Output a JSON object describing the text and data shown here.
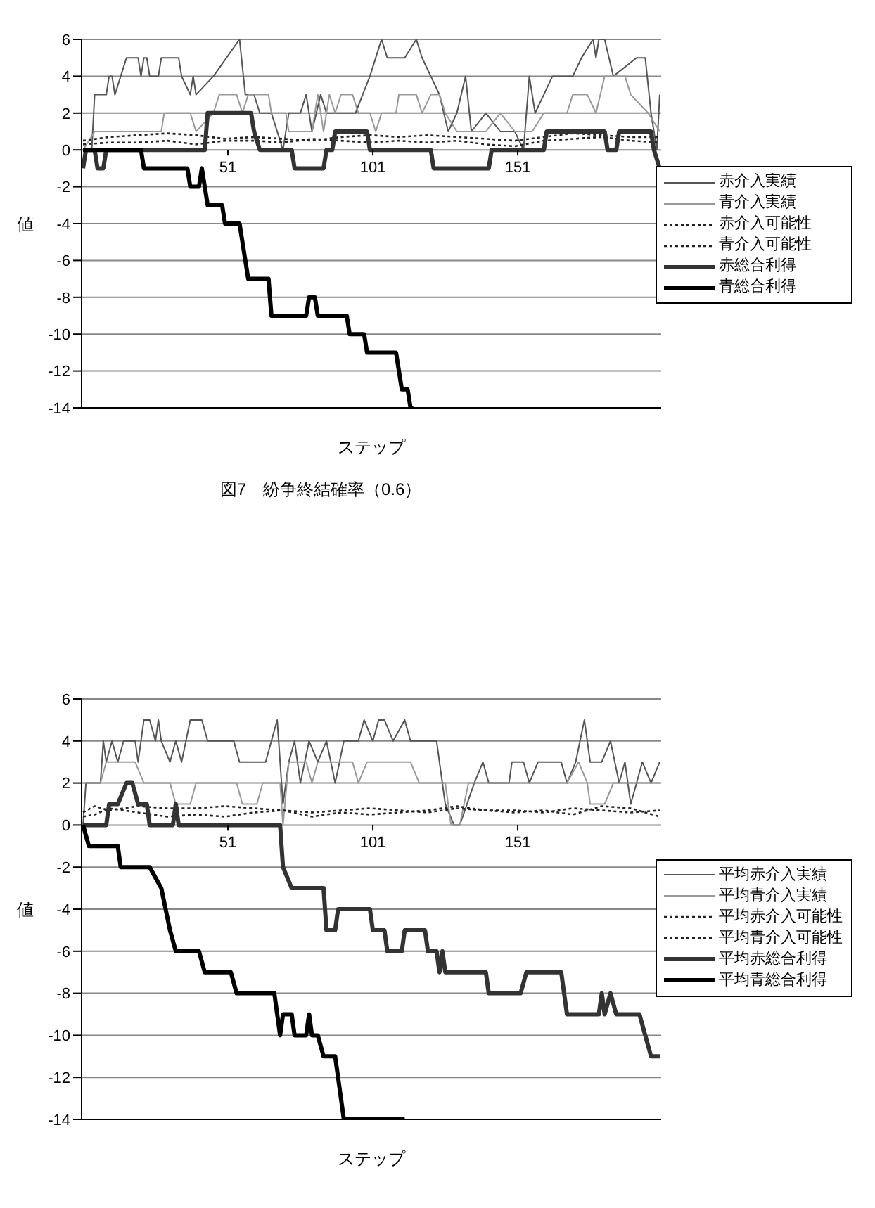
{
  "chart_data": [
    {
      "type": "line",
      "title": "図7　紛争終結確率（0.6）",
      "xlabel": "ステップ",
      "ylabel": "値",
      "xlim": [
        0.5,
        200.5
      ],
      "xticks": [
        51,
        101,
        151
      ],
      "ylim": [
        -14,
        6
      ],
      "yticks": [
        -14,
        -12,
        -10,
        -8,
        -6,
        -4,
        -2,
        0,
        2,
        4,
        6
      ],
      "grid": "y",
      "legend": "right",
      "series": [
        {
          "name": "赤介入実績",
          "color": "#555555",
          "line_style": "solid",
          "x": [
            1,
            4,
            5,
            9,
            10,
            11,
            12,
            14,
            16,
            20,
            21,
            22,
            23,
            24,
            27,
            28,
            34,
            35,
            38,
            39,
            40,
            46,
            55,
            57,
            60,
            62,
            66,
            70,
            72,
            76,
            78,
            80,
            83,
            85,
            90,
            95,
            100,
            104,
            106,
            110,
            112,
            116,
            118,
            121,
            124,
            127,
            130,
            133,
            135,
            140,
            145,
            150,
            153,
            155,
            157,
            160,
            163,
            170,
            173,
            177,
            178,
            179,
            181,
            184,
            192,
            195,
            197,
            199,
            200
          ],
          "values": [
            0,
            0,
            3,
            3,
            4,
            4,
            3,
            4,
            5,
            5,
            4,
            5,
            5,
            4,
            4,
            5,
            5,
            4,
            3,
            4,
            3,
            4,
            6,
            3,
            3,
            2,
            2,
            0,
            2,
            2,
            3,
            1,
            3,
            2,
            2,
            2,
            4,
            6,
            5,
            5,
            5,
            6,
            5,
            4,
            3,
            1,
            2,
            4,
            1,
            2,
            1,
            1,
            0,
            4,
            2,
            3,
            4,
            4,
            5,
            6,
            5,
            6,
            6,
            4,
            5,
            5,
            2,
            0,
            3
          ]
        },
        {
          "name": "青介入実績",
          "color": "#999999",
          "line_style": "solid",
          "x": [
            1,
            5,
            28,
            29,
            38,
            40,
            46,
            48,
            54,
            56,
            58,
            65,
            66,
            71,
            72,
            80,
            82,
            84,
            86,
            88,
            90,
            94,
            96,
            100,
            102,
            104,
            109,
            110,
            116,
            118,
            121,
            124,
            126,
            130,
            140,
            145,
            150,
            156,
            160,
            168,
            170,
            175,
            178,
            181,
            188,
            190,
            196,
            200
          ],
          "values": [
            0,
            1,
            1,
            2,
            2,
            1,
            2,
            3,
            3,
            2,
            3,
            3,
            2,
            2,
            1,
            1,
            3,
            1,
            3,
            2,
            3,
            3,
            2,
            2,
            1,
            2,
            2,
            3,
            3,
            2,
            3,
            3,
            2,
            1,
            1,
            2,
            1,
            1,
            2,
            2,
            3,
            3,
            2,
            4,
            4,
            3,
            2,
            1
          ]
        },
        {
          "name": "赤介入可能性",
          "color": "#222222",
          "line_style": "dotted",
          "x": [
            1,
            10,
            20,
            30,
            40,
            50,
            60,
            70,
            80,
            90,
            100,
            110,
            120,
            130,
            140,
            150,
            160,
            170,
            180,
            190,
            200
          ],
          "values": [
            0.5,
            0.7,
            0.8,
            0.9,
            0.8,
            0.6,
            0.7,
            0.6,
            0.5,
            0.7,
            0.8,
            0.7,
            0.8,
            0.7,
            0.6,
            0.5,
            0.7,
            0.9,
            0.8,
            0.7,
            0.7
          ]
        },
        {
          "name": "青介入可能性",
          "color": "#222222",
          "line_style": "dotted",
          "x": [
            1,
            10,
            20,
            30,
            40,
            50,
            60,
            70,
            80,
            90,
            100,
            110,
            120,
            130,
            140,
            150,
            160,
            170,
            180,
            190,
            200
          ],
          "values": [
            0.3,
            0.4,
            0.4,
            0.5,
            0.3,
            0.5,
            0.5,
            0.4,
            0.6,
            0.5,
            0.4,
            0.5,
            0.4,
            0.5,
            0.3,
            0.2,
            0.5,
            0.6,
            0.7,
            0.5,
            0.4
          ]
        },
        {
          "name": "赤総合利得",
          "color": "#333333",
          "line_style": "solid",
          "x": [
            1,
            2,
            5,
            6,
            8,
            9,
            43,
            44,
            59,
            60,
            62,
            73,
            74,
            84,
            85,
            87,
            88,
            99,
            100,
            121,
            122,
            141,
            142,
            160,
            161,
            181,
            182,
            185,
            186,
            197,
            198,
            200
          ],
          "values": [
            -1,
            0,
            0,
            -1,
            -1,
            0,
            0,
            2,
            2,
            1,
            0,
            0,
            -1,
            -1,
            0,
            0,
            1,
            1,
            0,
            0,
            -1,
            -1,
            0,
            0,
            1,
            1,
            0,
            0,
            1,
            1,
            0,
            -1
          ]
        },
        {
          "name": "青総合利得",
          "color": "#000000",
          "line_style": "solid",
          "x": [
            1,
            21,
            22,
            37,
            38,
            41,
            42,
            43,
            44,
            49,
            50,
            55,
            57,
            58,
            65,
            66,
            78,
            79,
            81,
            82,
            92,
            93,
            98,
            99,
            109,
            111,
            113,
            114,
            115
          ],
          "values": [
            0,
            0,
            -1,
            -1,
            -2,
            -2,
            -1,
            -2,
            -3,
            -3,
            -4,
            -4,
            -6,
            -7,
            -7,
            -9,
            -9,
            -8,
            -8,
            -9,
            -9,
            -10,
            -10,
            -11,
            -11,
            -13,
            -13,
            -14,
            -14
          ]
        }
      ]
    },
    {
      "type": "line",
      "xlabel": "ステップ",
      "ylabel": "値",
      "xlim": [
        0.5,
        200.5
      ],
      "xticks": [
        51,
        101,
        151
      ],
      "ylim": [
        -14,
        6
      ],
      "yticks": [
        -14,
        -12,
        -10,
        -8,
        -6,
        -4,
        -2,
        0,
        2,
        4,
        6
      ],
      "grid": "y",
      "legend": "right",
      "series": [
        {
          "name": "平均赤介入実績",
          "color": "#555555",
          "line_style": "solid",
          "x": [
            1,
            2,
            7,
            8,
            9,
            11,
            13,
            15,
            19,
            20,
            22,
            24,
            26,
            27,
            28,
            31,
            33,
            35,
            38,
            42,
            44,
            53,
            55,
            64,
            66,
            68,
            70,
            72,
            74,
            76,
            79,
            82,
            85,
            88,
            91,
            96,
            98,
            101,
            103,
            105,
            108,
            112,
            114,
            123,
            126,
            129,
            131,
            136,
            139,
            141,
            148,
            149,
            153,
            155,
            158,
            166,
            168,
            171,
            174,
            176,
            180,
            183,
            186,
            188,
            190,
            194,
            197,
            200
          ],
          "values": [
            0,
            2,
            2,
            4,
            3,
            4,
            3,
            4,
            4,
            3,
            5,
            5,
            4,
            5,
            4,
            3,
            4,
            3,
            5,
            5,
            4,
            4,
            3,
            3,
            4,
            5,
            1,
            3,
            4,
            2,
            4,
            3,
            4,
            2,
            4,
            4,
            5,
            4,
            5,
            5,
            4,
            5,
            4,
            4,
            1,
            0,
            0,
            2,
            3,
            2,
            2,
            3,
            3,
            2,
            3,
            3,
            2,
            3,
            5,
            3,
            3,
            4,
            2,
            3,
            1,
            3,
            2,
            3
          ]
        },
        {
          "name": "平均青介入実績",
          "color": "#999999",
          "line_style": "solid",
          "x": [
            1,
            7,
            9,
            19,
            22,
            31,
            33,
            38,
            40,
            54,
            56,
            61,
            63,
            69,
            70,
            72,
            78,
            80,
            82,
            94,
            96,
            99,
            114,
            117,
            126,
            128,
            131,
            134,
            168,
            172,
            175,
            176,
            181,
            184,
            200
          ],
          "values": [
            2,
            2,
            3,
            3,
            2,
            2,
            1,
            1,
            2,
            2,
            1,
            1,
            2,
            2,
            0,
            3,
            3,
            2,
            3,
            3,
            2,
            3,
            3,
            2,
            2,
            0,
            0,
            2,
            2,
            3,
            2,
            1,
            1,
            2,
            2
          ]
        },
        {
          "name": "平均赤介入可能性",
          "color": "#222222",
          "line_style": "dotted",
          "x": [
            1,
            5,
            10,
            20,
            30,
            40,
            50,
            60,
            70,
            80,
            90,
            100,
            110,
            120,
            130,
            140,
            150,
            160,
            170,
            180,
            190,
            200
          ],
          "values": [
            0.6,
            0.9,
            0.7,
            0.9,
            0.8,
            0.8,
            0.9,
            0.8,
            0.7,
            0.6,
            0.7,
            0.8,
            0.7,
            0.6,
            0.8,
            0.7,
            0.7,
            0.6,
            0.8,
            0.7,
            0.6,
            0.7
          ]
        },
        {
          "name": "平均青介入可能性",
          "color": "#222222",
          "line_style": "dotted",
          "x": [
            1,
            5,
            10,
            20,
            30,
            40,
            50,
            60,
            70,
            80,
            90,
            100,
            110,
            120,
            130,
            140,
            150,
            160,
            170,
            180,
            190,
            200
          ],
          "values": [
            0.4,
            0.5,
            0.8,
            0.6,
            0.4,
            0.5,
            0.4,
            0.6,
            0.7,
            0.4,
            0.6,
            0.5,
            0.6,
            0.7,
            0.9,
            0.7,
            0.6,
            0.7,
            0.5,
            0.9,
            0.8,
            0.4
          ]
        },
        {
          "name": "平均赤総合利得",
          "color": "#333333",
          "line_style": "solid",
          "x": [
            1,
            9,
            10,
            13,
            16,
            18,
            20,
            23,
            24,
            32,
            33,
            34,
            69,
            70,
            73,
            84,
            85,
            88,
            89,
            100,
            101,
            105,
            106,
            111,
            112,
            119,
            120,
            123,
            124,
            125,
            126,
            140,
            141,
            152,
            154,
            166,
            167,
            168,
            179,
            180,
            181,
            183,
            185,
            193,
            195,
            197,
            200
          ],
          "values": [
            0,
            0,
            1,
            1,
            2,
            2,
            1,
            1,
            0,
            0,
            1,
            0,
            0,
            -2,
            -3,
            -3,
            -5,
            -5,
            -4,
            -4,
            -5,
            -5,
            -6,
            -6,
            -5,
            -5,
            -6,
            -6,
            -7,
            -6,
            -7,
            -7,
            -8,
            -8,
            -7,
            -7,
            -8,
            -9,
            -9,
            -8,
            -9,
            -8,
            -9,
            -9,
            -10,
            -11,
            -11
          ]
        },
        {
          "name": "平均青総合利得",
          "color": "#000000",
          "line_style": "solid",
          "x": [
            1,
            3,
            13,
            14,
            24,
            28,
            31,
            33,
            41,
            43,
            52,
            54,
            67,
            69,
            70,
            73,
            74,
            78,
            79,
            80,
            82,
            84,
            88,
            90,
            91,
            112
          ],
          "values": [
            0,
            -1,
            -1,
            -2,
            -2,
            -3,
            -5,
            -6,
            -6,
            -7,
            -7,
            -8,
            -8,
            -10,
            -9,
            -9,
            -10,
            -10,
            -9,
            -10,
            -10,
            -11,
            -11,
            -13,
            -14,
            -14
          ]
        }
      ]
    }
  ]
}
